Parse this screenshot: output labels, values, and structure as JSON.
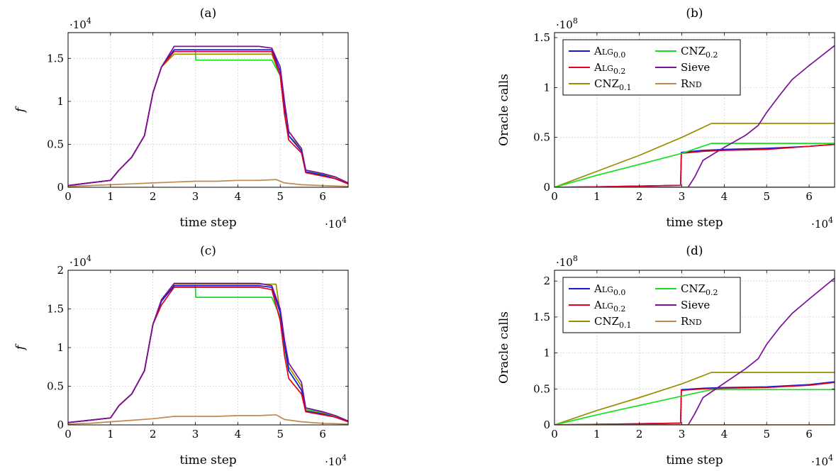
{
  "colors": {
    "ALG0.0": "#0a1fd6",
    "ALG0.2": "#e3001f",
    "CNZ0.1": "#9a8e00",
    "CNZ0.2": "#14e01e",
    "Sieve": "#7b0f9a",
    "RND": "#c08a4e"
  },
  "chart_data": [
    {
      "id": "a",
      "type": "line",
      "title": "(a)",
      "xlabel": "time step",
      "ylabel": "f",
      "x_multiplier": "·10^4",
      "y_multiplier": "·10^4",
      "xlim": [
        0,
        6.6
      ],
      "ylim": [
        0,
        1.8
      ],
      "xticks": [
        0,
        1,
        2,
        3,
        4,
        5,
        6
      ],
      "yticks": [
        0,
        0.5,
        1,
        1.5
      ],
      "xtick_labels": [
        "0",
        "1",
        "2",
        "3",
        "4",
        "5",
        "6"
      ],
      "ytick_labels": [
        "0",
        "0.5",
        "1",
        "1.5"
      ],
      "grid": true,
      "legend": false,
      "series": [
        {
          "key": "CNZ0.2",
          "x": [
            0,
            0.5,
            1,
            1.2,
            1.5,
            1.8,
            2,
            2.2,
            2.5,
            3,
            3.01,
            3.5,
            4,
            4.5,
            4.8,
            5,
            5.1,
            5.2,
            5.5,
            5.6,
            6,
            6.3,
            6.6
          ],
          "y": [
            0.02,
            0.05,
            0.08,
            0.2,
            0.35,
            0.6,
            1.1,
            1.4,
            1.6,
            1.6,
            1.48,
            1.48,
            1.48,
            1.48,
            1.48,
            1.3,
            0.9,
            0.65,
            0.45,
            0.2,
            0.15,
            0.12,
            0.05
          ]
        },
        {
          "key": "CNZ0.1",
          "x": [
            0,
            0.5,
            1,
            1.2,
            1.5,
            1.8,
            2,
            2.2,
            2.5,
            3,
            3.5,
            4,
            4.5,
            4.8,
            5,
            5.1,
            5.2,
            5.5,
            5.6,
            6,
            6.3,
            6.6
          ],
          "y": [
            0.02,
            0.05,
            0.08,
            0.2,
            0.35,
            0.6,
            1.1,
            1.4,
            1.55,
            1.55,
            1.55,
            1.55,
            1.55,
            1.55,
            1.3,
            0.95,
            0.6,
            0.45,
            0.18,
            0.14,
            0.1,
            0.04
          ]
        },
        {
          "key": "ALG0.0",
          "x": [
            0,
            0.5,
            1,
            1.2,
            1.5,
            1.8,
            2,
            2.2,
            2.5,
            3,
            3.5,
            4,
            4.5,
            4.8,
            5,
            5.1,
            5.15,
            5.2,
            5.5,
            5.6,
            6,
            6.3,
            6.6
          ],
          "y": [
            0.02,
            0.05,
            0.08,
            0.2,
            0.35,
            0.6,
            1.1,
            1.4,
            1.6,
            1.6,
            1.6,
            1.6,
            1.6,
            1.6,
            1.35,
            0.9,
            0.82,
            0.6,
            0.42,
            0.18,
            0.14,
            0.1,
            0.04
          ]
        },
        {
          "key": "ALG0.2",
          "x": [
            0,
            0.5,
            1,
            1.2,
            1.5,
            1.8,
            2,
            2.2,
            2.5,
            3,
            3.5,
            4,
            4.5,
            4.8,
            5,
            5.1,
            5.2,
            5.5,
            5.6,
            6,
            6.3,
            6.6
          ],
          "y": [
            0.02,
            0.05,
            0.08,
            0.2,
            0.35,
            0.6,
            1.1,
            1.4,
            1.58,
            1.58,
            1.58,
            1.58,
            1.58,
            1.58,
            1.3,
            0.85,
            0.55,
            0.4,
            0.17,
            0.13,
            0.1,
            0.04
          ]
        },
        {
          "key": "Sieve",
          "x": [
            0,
            0.5,
            1,
            1.2,
            1.5,
            1.8,
            2,
            2.2,
            2.5,
            3,
            3.5,
            4,
            4.5,
            4.8,
            5,
            5.1,
            5.2,
            5.5,
            5.6,
            6,
            6.3,
            6.6
          ],
          "y": [
            0.02,
            0.05,
            0.08,
            0.2,
            0.35,
            0.6,
            1.1,
            1.4,
            1.64,
            1.64,
            1.64,
            1.64,
            1.64,
            1.62,
            1.4,
            1.0,
            0.65,
            0.45,
            0.2,
            0.16,
            0.12,
            0.05
          ]
        },
        {
          "key": "RND",
          "x": [
            0,
            0.5,
            1,
            1.5,
            2,
            2.5,
            3,
            3.5,
            4,
            4.5,
            4.9,
            5.1,
            5.5,
            6,
            6.6
          ],
          "y": [
            0.01,
            0.02,
            0.03,
            0.04,
            0.05,
            0.06,
            0.07,
            0.07,
            0.08,
            0.08,
            0.09,
            0.05,
            0.03,
            0.02,
            0.01
          ]
        }
      ]
    },
    {
      "id": "b",
      "type": "line",
      "title": "(b)",
      "xlabel": "time step",
      "ylabel": "Oracle calls",
      "x_multiplier": "·10^4",
      "y_multiplier": "·10^8",
      "xlim": [
        0,
        6.6
      ],
      "ylim": [
        0,
        1.55
      ],
      "xticks": [
        0,
        1,
        2,
        3,
        4,
        5,
        6
      ],
      "yticks": [
        0,
        0.5,
        1,
        1.5
      ],
      "xtick_labels": [
        "0",
        "1",
        "2",
        "3",
        "4",
        "5",
        "6"
      ],
      "ytick_labels": [
        "0",
        "0.5",
        "1",
        "1.5"
      ],
      "grid": true,
      "legend": true,
      "legend_position": "top-left",
      "series": [
        {
          "key": "ALG0.0",
          "x": [
            0,
            1,
            2,
            2.97,
            2.99,
            3.5,
            4,
            5,
            6,
            6.6
          ],
          "y": [
            0,
            0.005,
            0.012,
            0.02,
            0.35,
            0.37,
            0.38,
            0.39,
            0.41,
            0.43
          ]
        },
        {
          "key": "ALG0.2",
          "x": [
            0,
            1,
            2,
            2.97,
            2.99,
            3.5,
            4,
            5,
            6,
            6.6
          ],
          "y": [
            0,
            0.005,
            0.012,
            0.02,
            0.34,
            0.36,
            0.37,
            0.38,
            0.41,
            0.43
          ]
        },
        {
          "key": "CNZ0.1",
          "x": [
            0,
            1,
            2,
            3,
            3.7,
            4,
            5,
            6,
            6.6
          ],
          "y": [
            0,
            0.16,
            0.32,
            0.5,
            0.64,
            0.64,
            0.64,
            0.64,
            0.64
          ]
        },
        {
          "key": "CNZ0.2",
          "x": [
            0,
            1,
            2,
            3,
            3.7,
            4,
            5,
            6,
            6.6
          ],
          "y": [
            0,
            0.12,
            0.23,
            0.34,
            0.44,
            0.44,
            0.44,
            0.44,
            0.44
          ]
        },
        {
          "key": "Sieve",
          "x": [
            0,
            3.15,
            3.3,
            3.5,
            4,
            4.5,
            4.8,
            5,
            5.3,
            5.6,
            6,
            6.6
          ],
          "y": [
            0,
            0,
            0.1,
            0.27,
            0.4,
            0.52,
            0.62,
            0.75,
            0.92,
            1.08,
            1.22,
            1.42
          ]
        },
        {
          "key": "RND",
          "x": [
            0,
            6.6
          ],
          "y": [
            0,
            0
          ]
        }
      ]
    },
    {
      "id": "c",
      "type": "line",
      "title": "(c)",
      "xlabel": "time step",
      "ylabel": "f",
      "x_multiplier": "·10^4",
      "y_multiplier": "·10^4",
      "xlim": [
        0,
        6.6
      ],
      "ylim": [
        0,
        2.0
      ],
      "xticks": [
        0,
        1,
        2,
        3,
        4,
        5,
        6
      ],
      "yticks": [
        0,
        0.5,
        1,
        1.5,
        2
      ],
      "xtick_labels": [
        "0",
        "1",
        "2",
        "3",
        "4",
        "5",
        "6"
      ],
      "ytick_labels": [
        "0",
        "0.5",
        "1",
        "1.5",
        "2"
      ],
      "grid": true,
      "legend": false,
      "series": [
        {
          "key": "CNZ0.2",
          "x": [
            0,
            0.5,
            1,
            1.2,
            1.5,
            1.8,
            2,
            2.2,
            2.5,
            3,
            3.01,
            3.5,
            4,
            4.5,
            4.8,
            5,
            5.1,
            5.2,
            5.5,
            5.6,
            6,
            6.3,
            6.6
          ],
          "y": [
            0.03,
            0.06,
            0.09,
            0.25,
            0.4,
            0.7,
            1.3,
            1.6,
            1.8,
            1.8,
            1.65,
            1.65,
            1.65,
            1.65,
            1.65,
            1.4,
            1.0,
            0.7,
            0.45,
            0.2,
            0.16,
            0.12,
            0.05
          ]
        },
        {
          "key": "CNZ0.1",
          "x": [
            0,
            0.5,
            1,
            1.2,
            1.5,
            1.8,
            2,
            2.2,
            2.5,
            3,
            3.5,
            4,
            4.5,
            4.9,
            5,
            5.1,
            5.2,
            5.5,
            5.6,
            6,
            6.3,
            6.6
          ],
          "y": [
            0.03,
            0.06,
            0.09,
            0.25,
            0.4,
            0.7,
            1.3,
            1.6,
            1.82,
            1.82,
            1.82,
            1.82,
            1.82,
            1.82,
            1.45,
            1.05,
            0.75,
            0.5,
            0.18,
            0.15,
            0.1,
            0.04
          ]
        },
        {
          "key": "ALG0.0",
          "x": [
            0,
            0.5,
            1,
            1.2,
            1.5,
            1.8,
            2,
            2.2,
            2.5,
            3,
            3.5,
            4,
            4.5,
            4.8,
            5,
            5.1,
            5.2,
            5.5,
            5.6,
            6,
            6.3,
            6.6
          ],
          "y": [
            0.03,
            0.06,
            0.09,
            0.25,
            0.4,
            0.7,
            1.3,
            1.6,
            1.8,
            1.8,
            1.8,
            1.8,
            1.8,
            1.78,
            1.45,
            1.05,
            0.7,
            0.45,
            0.18,
            0.14,
            0.1,
            0.04
          ]
        },
        {
          "key": "ALG0.2",
          "x": [
            0,
            0.5,
            1,
            1.2,
            1.5,
            1.8,
            2,
            2.2,
            2.5,
            3,
            3.5,
            4,
            4.5,
            4.8,
            5,
            5.1,
            5.2,
            5.5,
            5.6,
            6,
            6.3,
            6.6
          ],
          "y": [
            0.03,
            0.06,
            0.09,
            0.25,
            0.4,
            0.7,
            1.3,
            1.55,
            1.78,
            1.78,
            1.78,
            1.78,
            1.78,
            1.75,
            1.35,
            0.9,
            0.6,
            0.4,
            0.17,
            0.13,
            0.1,
            0.04
          ]
        },
        {
          "key": "Sieve",
          "x": [
            0,
            0.5,
            1,
            1.2,
            1.5,
            1.8,
            2,
            2.2,
            2.5,
            3,
            3.5,
            4,
            4.5,
            4.8,
            5,
            5.1,
            5.2,
            5.5,
            5.6,
            6,
            6.3,
            6.6
          ],
          "y": [
            0.03,
            0.06,
            0.09,
            0.25,
            0.4,
            0.7,
            1.3,
            1.62,
            1.83,
            1.83,
            1.83,
            1.83,
            1.83,
            1.8,
            1.5,
            1.1,
            0.8,
            0.55,
            0.22,
            0.17,
            0.12,
            0.05
          ]
        },
        {
          "key": "RND",
          "x": [
            0,
            0.5,
            1,
            1.5,
            2,
            2.5,
            3,
            3.5,
            4,
            4.5,
            4.9,
            5.1,
            5.5,
            6,
            6.6
          ],
          "y": [
            0.01,
            0.02,
            0.04,
            0.06,
            0.08,
            0.11,
            0.11,
            0.11,
            0.12,
            0.12,
            0.13,
            0.07,
            0.04,
            0.02,
            0.01
          ]
        }
      ]
    },
    {
      "id": "d",
      "type": "line",
      "title": "(d)",
      "xlabel": "time step",
      "ylabel": "Oracle calls",
      "x_multiplier": "·10^4",
      "y_multiplier": "·10^8",
      "xlim": [
        0,
        6.6
      ],
      "ylim": [
        0,
        2.15
      ],
      "xticks": [
        0,
        1,
        2,
        3,
        4,
        5,
        6
      ],
      "yticks": [
        0,
        0.5,
        1,
        1.5,
        2
      ],
      "xtick_labels": [
        "0",
        "1",
        "2",
        "3",
        "4",
        "5",
        "6"
      ],
      "ytick_labels": [
        "0",
        "0.5",
        "1",
        "1.5",
        "2"
      ],
      "grid": true,
      "legend": true,
      "legend_position": "top-left",
      "series": [
        {
          "key": "ALG0.0",
          "x": [
            0,
            1,
            2,
            2.97,
            2.99,
            3.5,
            4,
            5,
            6,
            6.6
          ],
          "y": [
            0,
            0.008,
            0.016,
            0.025,
            0.49,
            0.51,
            0.52,
            0.53,
            0.56,
            0.6
          ]
        },
        {
          "key": "ALG0.2",
          "x": [
            0,
            1,
            2,
            2.97,
            2.99,
            3.5,
            4,
            5,
            6,
            6.6
          ],
          "y": [
            0,
            0.008,
            0.016,
            0.025,
            0.48,
            0.5,
            0.51,
            0.52,
            0.55,
            0.59
          ]
        },
        {
          "key": "CNZ0.1",
          "x": [
            0,
            1,
            2,
            3,
            3.7,
            4,
            5,
            6,
            6.6
          ],
          "y": [
            0,
            0.2,
            0.38,
            0.57,
            0.73,
            0.73,
            0.73,
            0.73,
            0.73
          ]
        },
        {
          "key": "CNZ0.2",
          "x": [
            0,
            1,
            2,
            3,
            3.7,
            4,
            5,
            6,
            6.6
          ],
          "y": [
            0,
            0.14,
            0.27,
            0.4,
            0.49,
            0.49,
            0.49,
            0.49,
            0.49
          ]
        },
        {
          "key": "Sieve",
          "x": [
            0,
            3.15,
            3.3,
            3.5,
            4,
            4.5,
            4.8,
            5,
            5.3,
            5.6,
            6,
            6.6
          ],
          "y": [
            0,
            0,
            0.15,
            0.38,
            0.58,
            0.78,
            0.92,
            1.12,
            1.35,
            1.55,
            1.75,
            2.04
          ]
        },
        {
          "key": "RND",
          "x": [
            0,
            6.6
          ],
          "y": [
            0,
            0
          ]
        }
      ]
    }
  ],
  "legend_entries": [
    {
      "key": "ALG0.0",
      "main": "Alg",
      "sub": "0.0",
      "smallcaps": true
    },
    {
      "key": "CNZ0.2",
      "main": "CNZ",
      "sub": "0.2",
      "smallcaps": false
    },
    {
      "key": "ALG0.2",
      "main": "Alg",
      "sub": "0.2",
      "smallcaps": true
    },
    {
      "key": "Sieve",
      "main": "Sieve",
      "sub": "",
      "smallcaps": false
    },
    {
      "key": "CNZ0.1",
      "main": "CNZ",
      "sub": "0.1",
      "smallcaps": false
    },
    {
      "key": "RND",
      "main": "Rnd",
      "sub": "",
      "smallcaps": true
    }
  ]
}
